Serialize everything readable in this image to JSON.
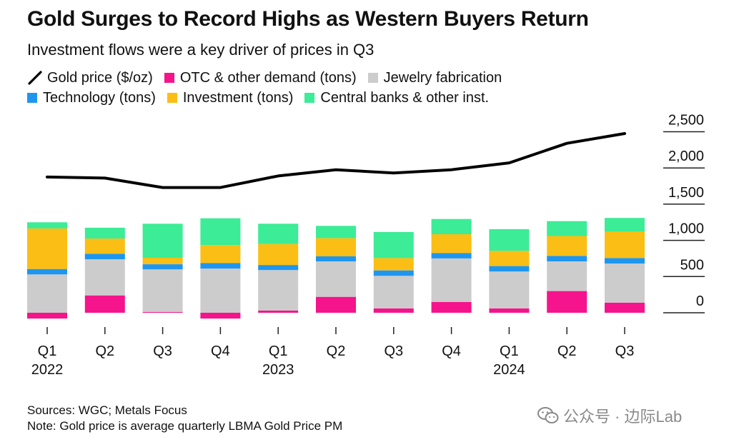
{
  "title": "Gold Surges to Record Highs as Western Buyers Return",
  "subtitle": "Investment flows were a key driver of prices in Q3",
  "legend": {
    "gold": "Gold price ($/oz)",
    "otc": "OTC & other demand (tons)",
    "jewelry": "Jewelry fabrication",
    "technology": "Technology (tons)",
    "investment": "Investment (tons)",
    "central": "Central banks & other inst."
  },
  "colors": {
    "gold": "#000000",
    "otc": "#f5148c",
    "jewelry": "#cccccc",
    "technology": "#1e96f0",
    "investment": "#fbbe14",
    "central": "#3cec96"
  },
  "footer": {
    "sources": "Sources: WGC; Metals Focus",
    "note": "Note: Gold price is average quarterly LBMA Gold Price PM"
  },
  "watermark": {
    "text": "公众号 · 边际Lab",
    "icon": "wechat-icon"
  },
  "chart_data": {
    "type": "bar",
    "stacked": true,
    "categories": [
      "Q1",
      "Q2",
      "Q3",
      "Q4",
      "Q1",
      "Q2",
      "Q3",
      "Q4",
      "Q1",
      "Q2",
      "Q3"
    ],
    "years": [
      {
        "label": "2022",
        "index": 0
      },
      {
        "label": "2023",
        "index": 4
      },
      {
        "label": "2024",
        "index": 8
      }
    ],
    "series": [
      {
        "name": "OTC & other demand (tons)",
        "key": "otc",
        "values": [
          -80,
          240,
          10,
          -80,
          30,
          220,
          60,
          150,
          60,
          300,
          140
        ]
      },
      {
        "name": "Jewelry fabrication",
        "key": "jewelry",
        "values": [
          530,
          500,
          590,
          610,
          560,
          490,
          450,
          600,
          510,
          410,
          540
        ]
      },
      {
        "name": "Technology (tons)",
        "key": "technology",
        "values": [
          75,
          75,
          70,
          75,
          70,
          70,
          75,
          75,
          75,
          75,
          75
        ]
      },
      {
        "name": "Investment (tons)",
        "key": "investment",
        "values": [
          560,
          210,
          90,
          250,
          290,
          250,
          170,
          260,
          210,
          275,
          370
        ]
      },
      {
        "name": "Central banks & other inst.",
        "key": "central",
        "values": [
          85,
          150,
          470,
          370,
          280,
          170,
          360,
          210,
          300,
          205,
          185
        ]
      }
    ],
    "line": {
      "name": "Gold price ($/oz)",
      "values": [
        1875,
        1860,
        1730,
        1730,
        1890,
        1975,
        1930,
        1975,
        2070,
        2340,
        2475
      ]
    },
    "yticks": [
      "0",
      "500",
      "1,000",
      "1,500",
      "2,000",
      "2,500"
    ],
    "ytick_values": [
      0,
      500,
      1000,
      1500,
      2000,
      2500
    ],
    "ylim": [
      -130,
      2700
    ],
    "grid": false,
    "legend_position": "top-left",
    "y_axis_side": "right"
  }
}
